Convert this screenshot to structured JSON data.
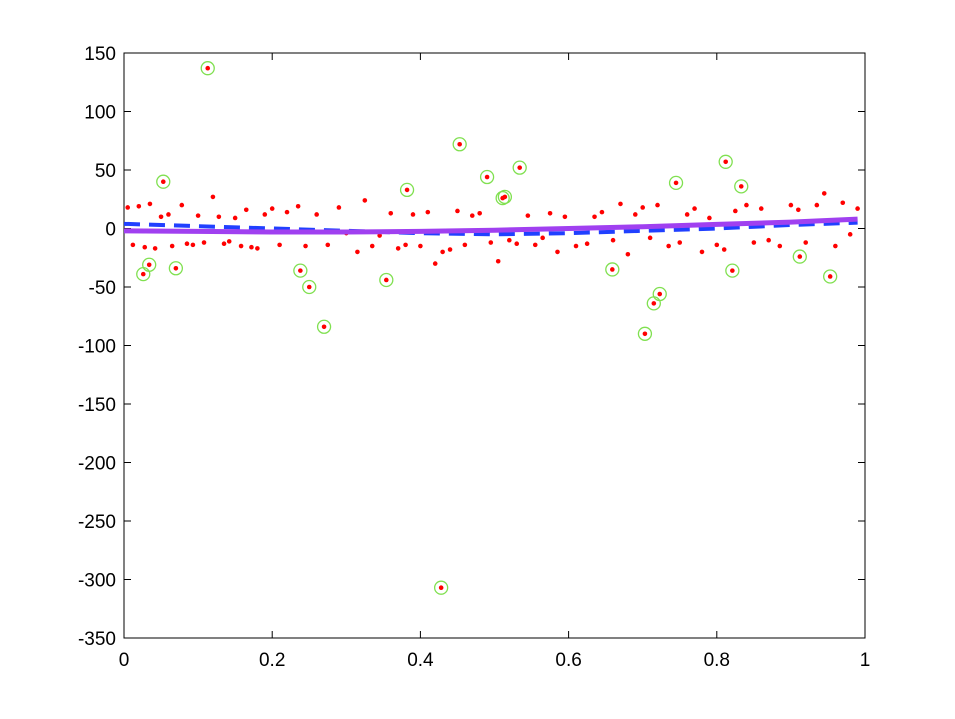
{
  "chart_data": {
    "type": "scatter",
    "xlim": [
      0,
      1
    ],
    "ylim": [
      -350,
      150
    ],
    "xticks": [
      0,
      0.2,
      0.4,
      0.6,
      0.8,
      1
    ],
    "yticks": [
      -350,
      -300,
      -250,
      -200,
      -150,
      -100,
      -50,
      0,
      50,
      100,
      150
    ],
    "grid": false,
    "series": [
      {
        "mode": "markers",
        "color": "#ff0000",
        "x": [
          0.005,
          0.012,
          0.02,
          0.028,
          0.035,
          0.042,
          0.05,
          0.06,
          0.065,
          0.078,
          0.085,
          0.093,
          0.1,
          0.108,
          0.12,
          0.128,
          0.135,
          0.142,
          0.15,
          0.158,
          0.165,
          0.172,
          0.18,
          0.19,
          0.2,
          0.21,
          0.22,
          0.235,
          0.245,
          0.26,
          0.275,
          0.29,
          0.3,
          0.315,
          0.325,
          0.335,
          0.345,
          0.36,
          0.37,
          0.38,
          0.39,
          0.4,
          0.41,
          0.42,
          0.43,
          0.44,
          0.45,
          0.46,
          0.47,
          0.48,
          0.495,
          0.505,
          0.52,
          0.53,
          0.545,
          0.555,
          0.565,
          0.575,
          0.585,
          0.595,
          0.61,
          0.625,
          0.635,
          0.645,
          0.66,
          0.67,
          0.68,
          0.69,
          0.7,
          0.71,
          0.72,
          0.735,
          0.75,
          0.76,
          0.77,
          0.78,
          0.79,
          0.8,
          0.81,
          0.825,
          0.84,
          0.85,
          0.86,
          0.87,
          0.885,
          0.9,
          0.91,
          0.92,
          0.935,
          0.945,
          0.96,
          0.97,
          0.98,
          0.99
        ],
        "values": [
          18,
          -14,
          19,
          -16,
          21,
          -17,
          10,
          12,
          -15,
          20,
          -13,
          -14,
          11,
          -12,
          27,
          10,
          -13,
          -11,
          9,
          -15,
          16,
          -16,
          -17,
          12,
          17,
          -14,
          14,
          19,
          -15,
          12,
          -14,
          18,
          -4,
          -20,
          24,
          -15,
          -6,
          13,
          -17,
          -14,
          12,
          -15,
          14,
          -30,
          -20,
          -18,
          15,
          -14,
          11,
          13,
          -12,
          -28,
          -10,
          -13,
          11,
          -14,
          -8,
          13,
          -20,
          10,
          -15,
          -13,
          10,
          14,
          -10,
          21,
          -22,
          12,
          18,
          -8,
          20,
          -15,
          -12,
          12,
          17,
          -20,
          9,
          -14,
          -18,
          15,
          20,
          -12,
          17,
          -10,
          -15,
          20,
          16,
          -12,
          20,
          30,
          -15,
          22,
          -5,
          17
        ]
      },
      {
        "mode": "markers",
        "color": "#ff0000",
        "ring_color": "#80e050",
        "x": [
          0.113,
          0.053,
          0.026,
          0.034,
          0.07,
          0.238,
          0.25,
          0.27,
          0.354,
          0.382,
          0.428,
          0.453,
          0.49,
          0.511,
          0.514,
          0.534,
          0.659,
          0.703,
          0.715,
          0.723,
          0.745,
          0.812,
          0.821,
          0.833,
          0.912,
          0.953
        ],
        "values": [
          137,
          40,
          -39,
          -31,
          -34,
          -36,
          -50,
          -84,
          -44,
          33,
          -307,
          72,
          44,
          26,
          27,
          52,
          -35,
          -90,
          -64,
          -56,
          39,
          57,
          -36,
          36,
          -24,
          -41
        ]
      },
      {
        "mode": "line",
        "color": "#2040ff",
        "dashed": true,
        "x": [
          0,
          0.1,
          0.2,
          0.3,
          0.4,
          0.5,
          0.6,
          0.7,
          0.8,
          0.9,
          0.99
        ],
        "values": [
          4,
          2,
          0,
          -2,
          -4,
          -5,
          -4,
          -2,
          0,
          3,
          5
        ]
      },
      {
        "mode": "line",
        "color": "#a040f0",
        "dashed": false,
        "x": [
          0,
          0.1,
          0.2,
          0.3,
          0.4,
          0.5,
          0.6,
          0.7,
          0.8,
          0.9,
          0.99
        ],
        "values": [
          -2,
          -2.5,
          -3,
          -3,
          -2.5,
          -1.5,
          0,
          1.5,
          3.5,
          5.5,
          8
        ]
      }
    ]
  }
}
